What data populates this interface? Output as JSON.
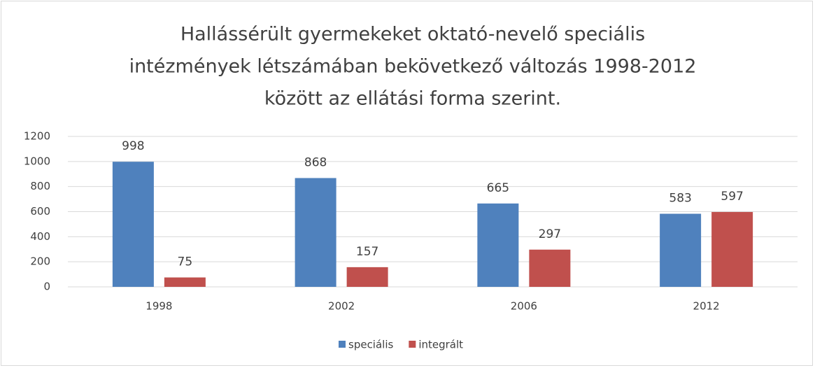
{
  "chart_data": {
    "type": "bar",
    "title": [
      "Hallássérült gyermekeket oktató-nevelő speciális",
      "intézmények létszámában bekövetkező változás 1998-2012",
      "között az ellátási forma szerint."
    ],
    "categories": [
      "1998",
      "2002",
      "2006",
      "2012"
    ],
    "series": [
      {
        "name": "speciális",
        "color": "#4f81bd",
        "values": [
          998,
          868,
          665,
          583
        ]
      },
      {
        "name": "integrált",
        "color": "#c0504d",
        "values": [
          75,
          157,
          297,
          597
        ]
      }
    ],
    "ylim": [
      0,
      1200
    ],
    "yticks": [
      0,
      200,
      400,
      600,
      800,
      1000,
      1200
    ],
    "grid": true,
    "legend": "bottom"
  }
}
